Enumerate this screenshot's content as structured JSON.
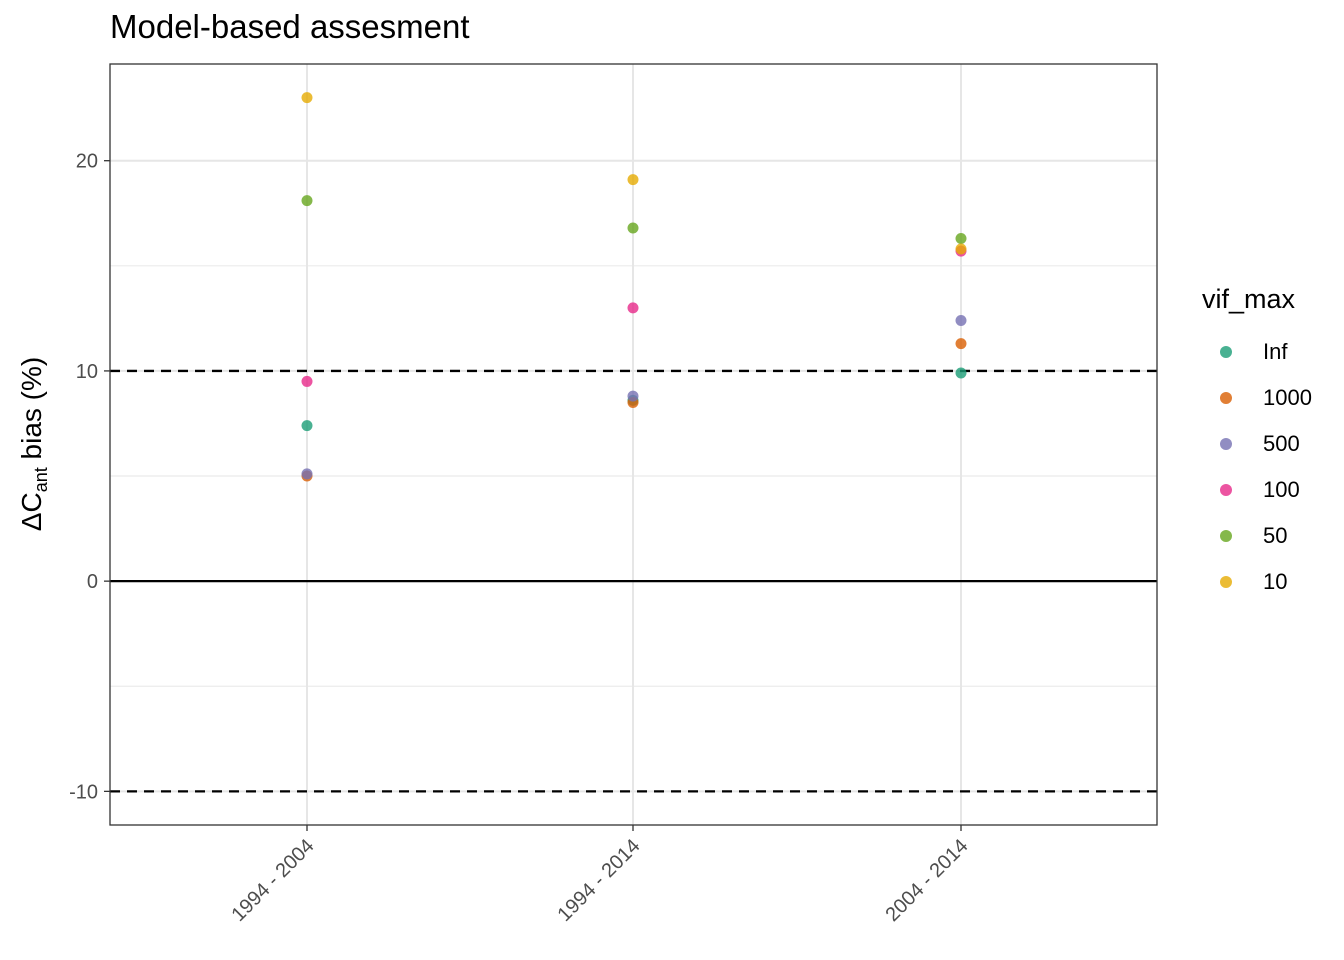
{
  "chart_data": {
    "type": "scatter",
    "title": "Model-based assesment",
    "ylabel": "bias (%)",
    "ylabel_prefix": "ΔC",
    "ylabel_subscript": "ant",
    "xlabel": "",
    "categories": [
      "1994 - 2004",
      "1994 - 2014",
      "2004 - 2014"
    ],
    "ylim": [
      -11.6,
      24.6
    ],
    "yticks": [
      -10,
      0,
      10,
      20
    ],
    "hlines": [
      {
        "y": 10,
        "style": "dashed"
      },
      {
        "y": -10,
        "style": "dashed"
      },
      {
        "y": 0,
        "style": "solid"
      }
    ],
    "grid": true,
    "legend": {
      "title": "vif_max",
      "position": "right"
    },
    "series": [
      {
        "name": "Inf",
        "color": "#1b9e77",
        "values": [
          7.4,
          8.6,
          9.9
        ]
      },
      {
        "name": "1000",
        "color": "#d95f02",
        "values": [
          5.0,
          8.5,
          11.3
        ]
      },
      {
        "name": "500",
        "color": "#7570b3",
        "values": [
          5.1,
          8.8,
          12.4
        ]
      },
      {
        "name": "100",
        "color": "#e7298a",
        "values": [
          9.5,
          13.0,
          15.7
        ]
      },
      {
        "name": "50",
        "color": "#66a61e",
        "values": [
          18.1,
          16.8,
          16.3
        ]
      },
      {
        "name": "10",
        "color": "#e6ab02",
        "values": [
          23.0,
          19.1,
          15.8
        ]
      }
    ]
  }
}
